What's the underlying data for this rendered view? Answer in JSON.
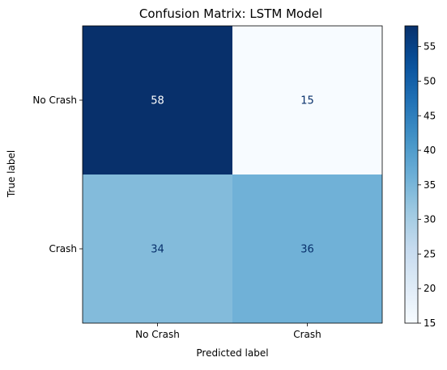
{
  "chart_data": {
    "type": "heatmap",
    "title": "Confusion Matrix: LSTM Model",
    "xlabel": "Predicted label",
    "ylabel": "True label",
    "x_categories": [
      "No Crash",
      "Crash"
    ],
    "y_categories": [
      "No Crash",
      "Crash"
    ],
    "values": [
      [
        58,
        15
      ],
      [
        34,
        36
      ]
    ],
    "colormap": "Blues",
    "colorbar": {
      "range": [
        15,
        58
      ],
      "ticks": [
        "15",
        "20",
        "25",
        "30",
        "35",
        "40",
        "45",
        "50",
        "55"
      ]
    },
    "cell_text_colors": {
      "light_cell": "#08306b",
      "dark_cell": "#ffffff"
    }
  }
}
